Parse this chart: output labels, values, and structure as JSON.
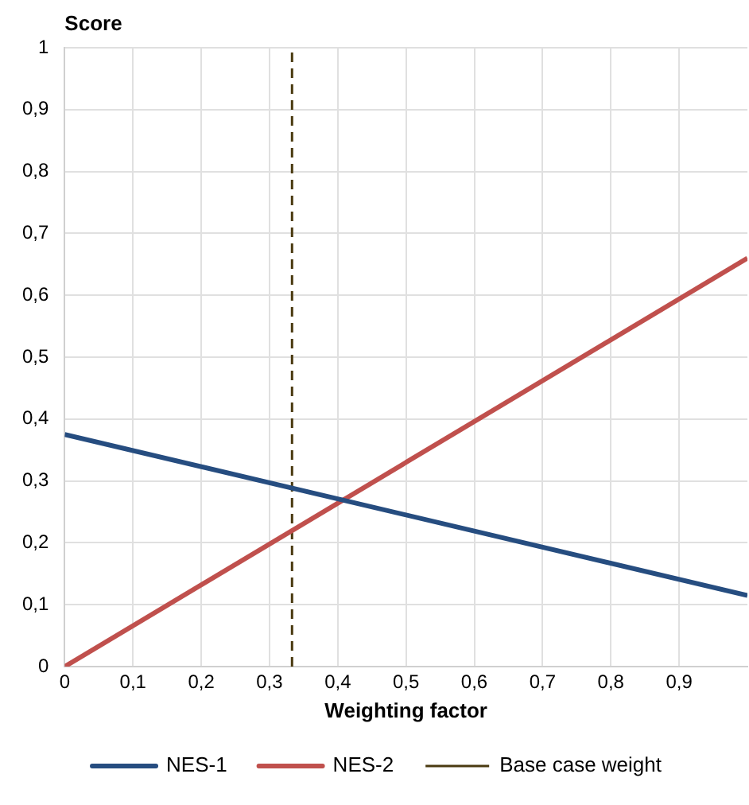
{
  "chart_data": {
    "type": "line",
    "xlabel": "Weighting factor",
    "ylabel": "Score",
    "x": [
      0,
      1
    ],
    "series": [
      {
        "name": "NES-1",
        "color": "#264d80",
        "values": [
          0.375,
          0.115
        ]
      },
      {
        "name": "NES-2",
        "color": "#c0504d",
        "values": [
          0,
          0.66
        ]
      }
    ],
    "xlim": [
      0,
      1
    ],
    "ylim": [
      0,
      1
    ],
    "xticks": [
      {
        "value": 0,
        "label": "0"
      },
      {
        "value": 0.1,
        "label": "0,1"
      },
      {
        "value": 0.2,
        "label": "0,2"
      },
      {
        "value": 0.3,
        "label": "0,3"
      },
      {
        "value": 0.4,
        "label": "0,4"
      },
      {
        "value": 0.5,
        "label": "0,5"
      },
      {
        "value": 0.6,
        "label": "0,6"
      },
      {
        "value": 0.7,
        "label": "0,7"
      },
      {
        "value": 0.8,
        "label": "0,8"
      },
      {
        "value": 0.9,
        "label": "0,9"
      }
    ],
    "yticks": [
      {
        "value": 0,
        "label": "0"
      },
      {
        "value": 0.1,
        "label": "0,1"
      },
      {
        "value": 0.2,
        "label": "0,2"
      },
      {
        "value": 0.3,
        "label": "0,3"
      },
      {
        "value": 0.4,
        "label": "0,4"
      },
      {
        "value": 0.5,
        "label": "0,5"
      },
      {
        "value": 0.6,
        "label": "0,6"
      },
      {
        "value": 0.7,
        "label": "0,7"
      },
      {
        "value": 0.8,
        "label": "0,8"
      },
      {
        "value": 0.9,
        "label": "0,9"
      },
      {
        "value": 1,
        "label": "1"
      }
    ],
    "ref_lines": [
      {
        "axis": "x",
        "value": 0.333,
        "label": "Base case weight",
        "color": "#4a3a10",
        "line_style": "dashed"
      }
    ],
    "grid": true,
    "legend": "bottom",
    "marker": "none",
    "line_style": "solid"
  }
}
